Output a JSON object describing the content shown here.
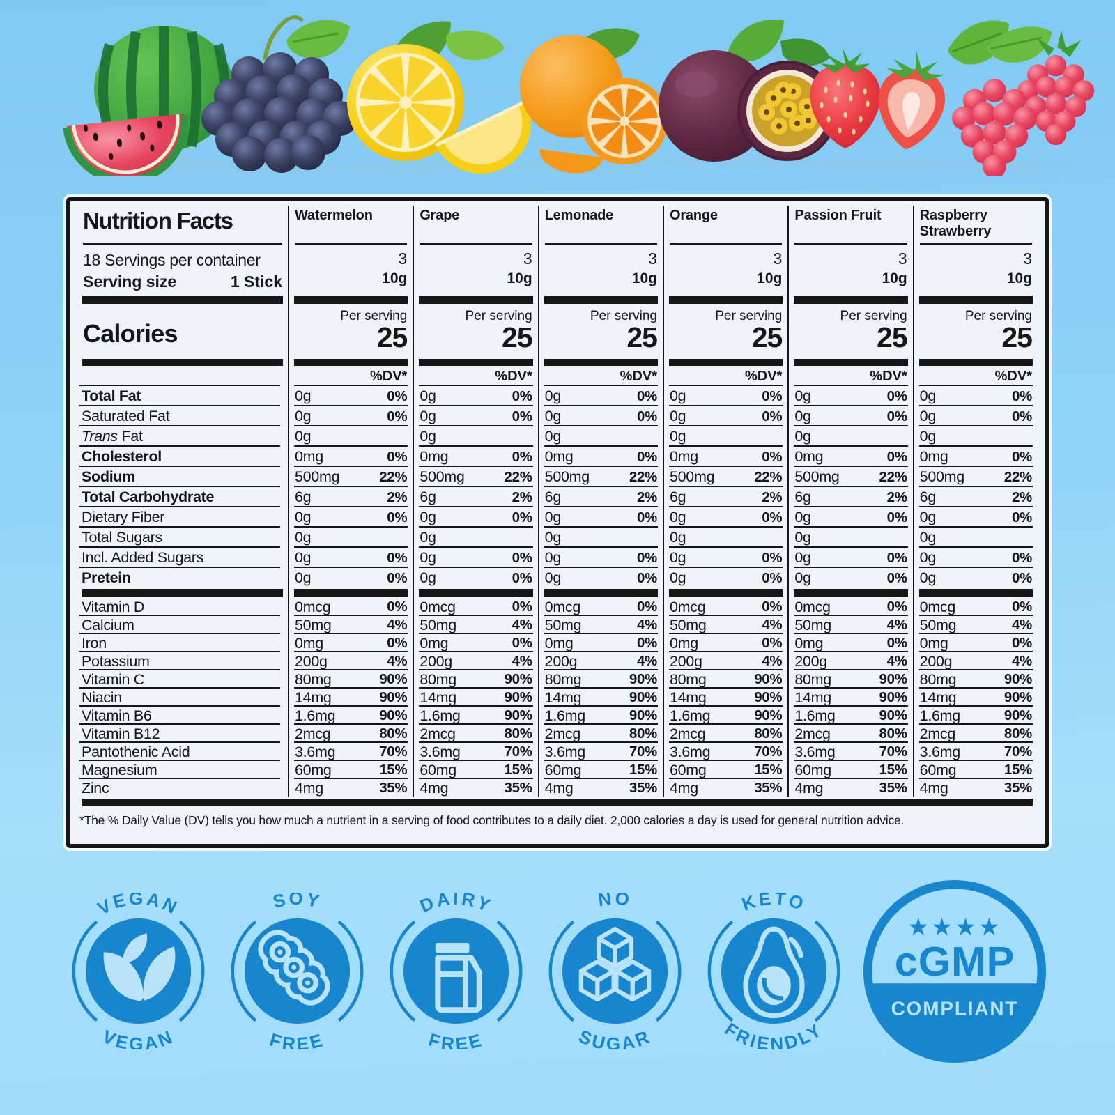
{
  "nutrition": {
    "title": "Nutrition Facts",
    "servings_per_container": "18 Servings per container",
    "serving_size_label": "Serving size",
    "serving_size_value": "1 Stick",
    "calories_label": "Calories",
    "per_serving_label": "Per serving",
    "dv_header": "%DV*",
    "flavors": [
      {
        "name": "Watermelon",
        "servings": "3",
        "serving_size": "10g",
        "calories": "25"
      },
      {
        "name": "Grape",
        "servings": "3",
        "serving_size": "10g",
        "calories": "25"
      },
      {
        "name": "Lemonade",
        "servings": "3",
        "serving_size": "10g",
        "calories": "25"
      },
      {
        "name": "Orange",
        "servings": "3",
        "serving_size": "10g",
        "calories": "25"
      },
      {
        "name": "Passion Fruit",
        "servings": "3",
        "serving_size": "10g",
        "calories": "25"
      },
      {
        "name": "Raspberry Strawberry",
        "servings": "3",
        "serving_size": "10g",
        "calories": "25"
      }
    ],
    "nutrient_rows": [
      {
        "label": "Total Fat",
        "style": "bold",
        "indent": 0,
        "amount": "0g",
        "dv": "0%"
      },
      {
        "label": "Saturated Fat",
        "style": "normal",
        "indent": 1,
        "amount": "0g",
        "dv": "0%"
      },
      {
        "label": "Trans Fat",
        "style": "italic-first",
        "indent": 1,
        "amount": "0g",
        "dv": ""
      },
      {
        "label": "Cholesterol",
        "style": "bold",
        "indent": 0,
        "amount": "0mg",
        "dv": "0%"
      },
      {
        "label": "Sodium",
        "style": "bold",
        "indent": 0,
        "amount": "500mg",
        "dv": "22%"
      },
      {
        "label": "Total Carbohydrate",
        "style": "bold",
        "indent": 0,
        "amount": "6g",
        "dv": "2%"
      },
      {
        "label": "Dietary Fiber",
        "style": "normal",
        "indent": 1,
        "amount": "0g",
        "dv": "0%"
      },
      {
        "label": "Total Sugars",
        "style": "normal",
        "indent": 1,
        "amount": "0g",
        "dv": ""
      },
      {
        "label": "Incl. Added Sugars",
        "style": "normal",
        "indent": 2,
        "amount": "0g",
        "dv": "0%"
      },
      {
        "label": "Pretein",
        "style": "bold",
        "indent": 0,
        "amount": "0g",
        "dv": "0%"
      }
    ],
    "vitamin_rows": [
      {
        "label": "Vitamin D",
        "amount": "0mcg",
        "dv": "0%"
      },
      {
        "label": "Calcium",
        "amount": "50mg",
        "dv": "4%"
      },
      {
        "label": "Iron",
        "amount": "0mg",
        "dv": "0%"
      },
      {
        "label": "Potassium",
        "amount": "200g",
        "dv": "4%"
      },
      {
        "label": "Vitamin C",
        "amount": "80mg",
        "dv": "90%"
      },
      {
        "label": "Niacin",
        "amount": "14mg",
        "dv": "90%"
      },
      {
        "label": "Vitamin B6",
        "amount": "1.6mg",
        "dv": "90%"
      },
      {
        "label": "Vitamin B12",
        "amount": "2mcg",
        "dv": "80%"
      },
      {
        "label": "Pantothenic Acid",
        "amount": "3.6mg",
        "dv": "70%"
      },
      {
        "label": "Magnesium",
        "amount": "60mg",
        "dv": "15%"
      },
      {
        "label": "Zinc",
        "amount": "4mg",
        "dv": "35%"
      }
    ],
    "footnote": "*The % Daily Value (DV) tells you how much a nutrient in a serving of food contributes to a daily diet. 2,000 calories a day is used for general nutrition advice."
  },
  "fruit_banner": {
    "items": [
      "watermelon",
      "grapes",
      "lemon",
      "orange",
      "passion-fruit",
      "strawberries",
      "raspberries"
    ]
  },
  "badges": [
    {
      "id": "vegan",
      "arc_top": "VEGAN",
      "arc_bottom": "VEGAN",
      "icon": "leaf-icon"
    },
    {
      "id": "soy-free",
      "arc_top": "SOY",
      "arc_bottom": "FREE",
      "icon": "soybean-icon"
    },
    {
      "id": "dairy-free",
      "arc_top": "DAIRY",
      "arc_bottom": "FREE",
      "icon": "milk-carton-icon"
    },
    {
      "id": "no-sugar",
      "arc_top": "NO",
      "arc_bottom": "SUGAR",
      "icon": "sugar-cubes-icon"
    },
    {
      "id": "keto-friendly",
      "arc_top": "KETO",
      "arc_bottom": "FRIENDLY",
      "icon": "avocado-icon"
    },
    {
      "id": "cgmp",
      "type": "seal",
      "stars": 4,
      "title": "cGMP",
      "subtitle": "COMPLIANT"
    }
  ],
  "colors": {
    "badge_blue": "#1786cf",
    "badge_light": "#b9e3f9",
    "panel_bg": "#edf5fa",
    "line_black": "#161616",
    "background_top": "#7fc9f3",
    "background_bottom": "#a0ddf9"
  }
}
